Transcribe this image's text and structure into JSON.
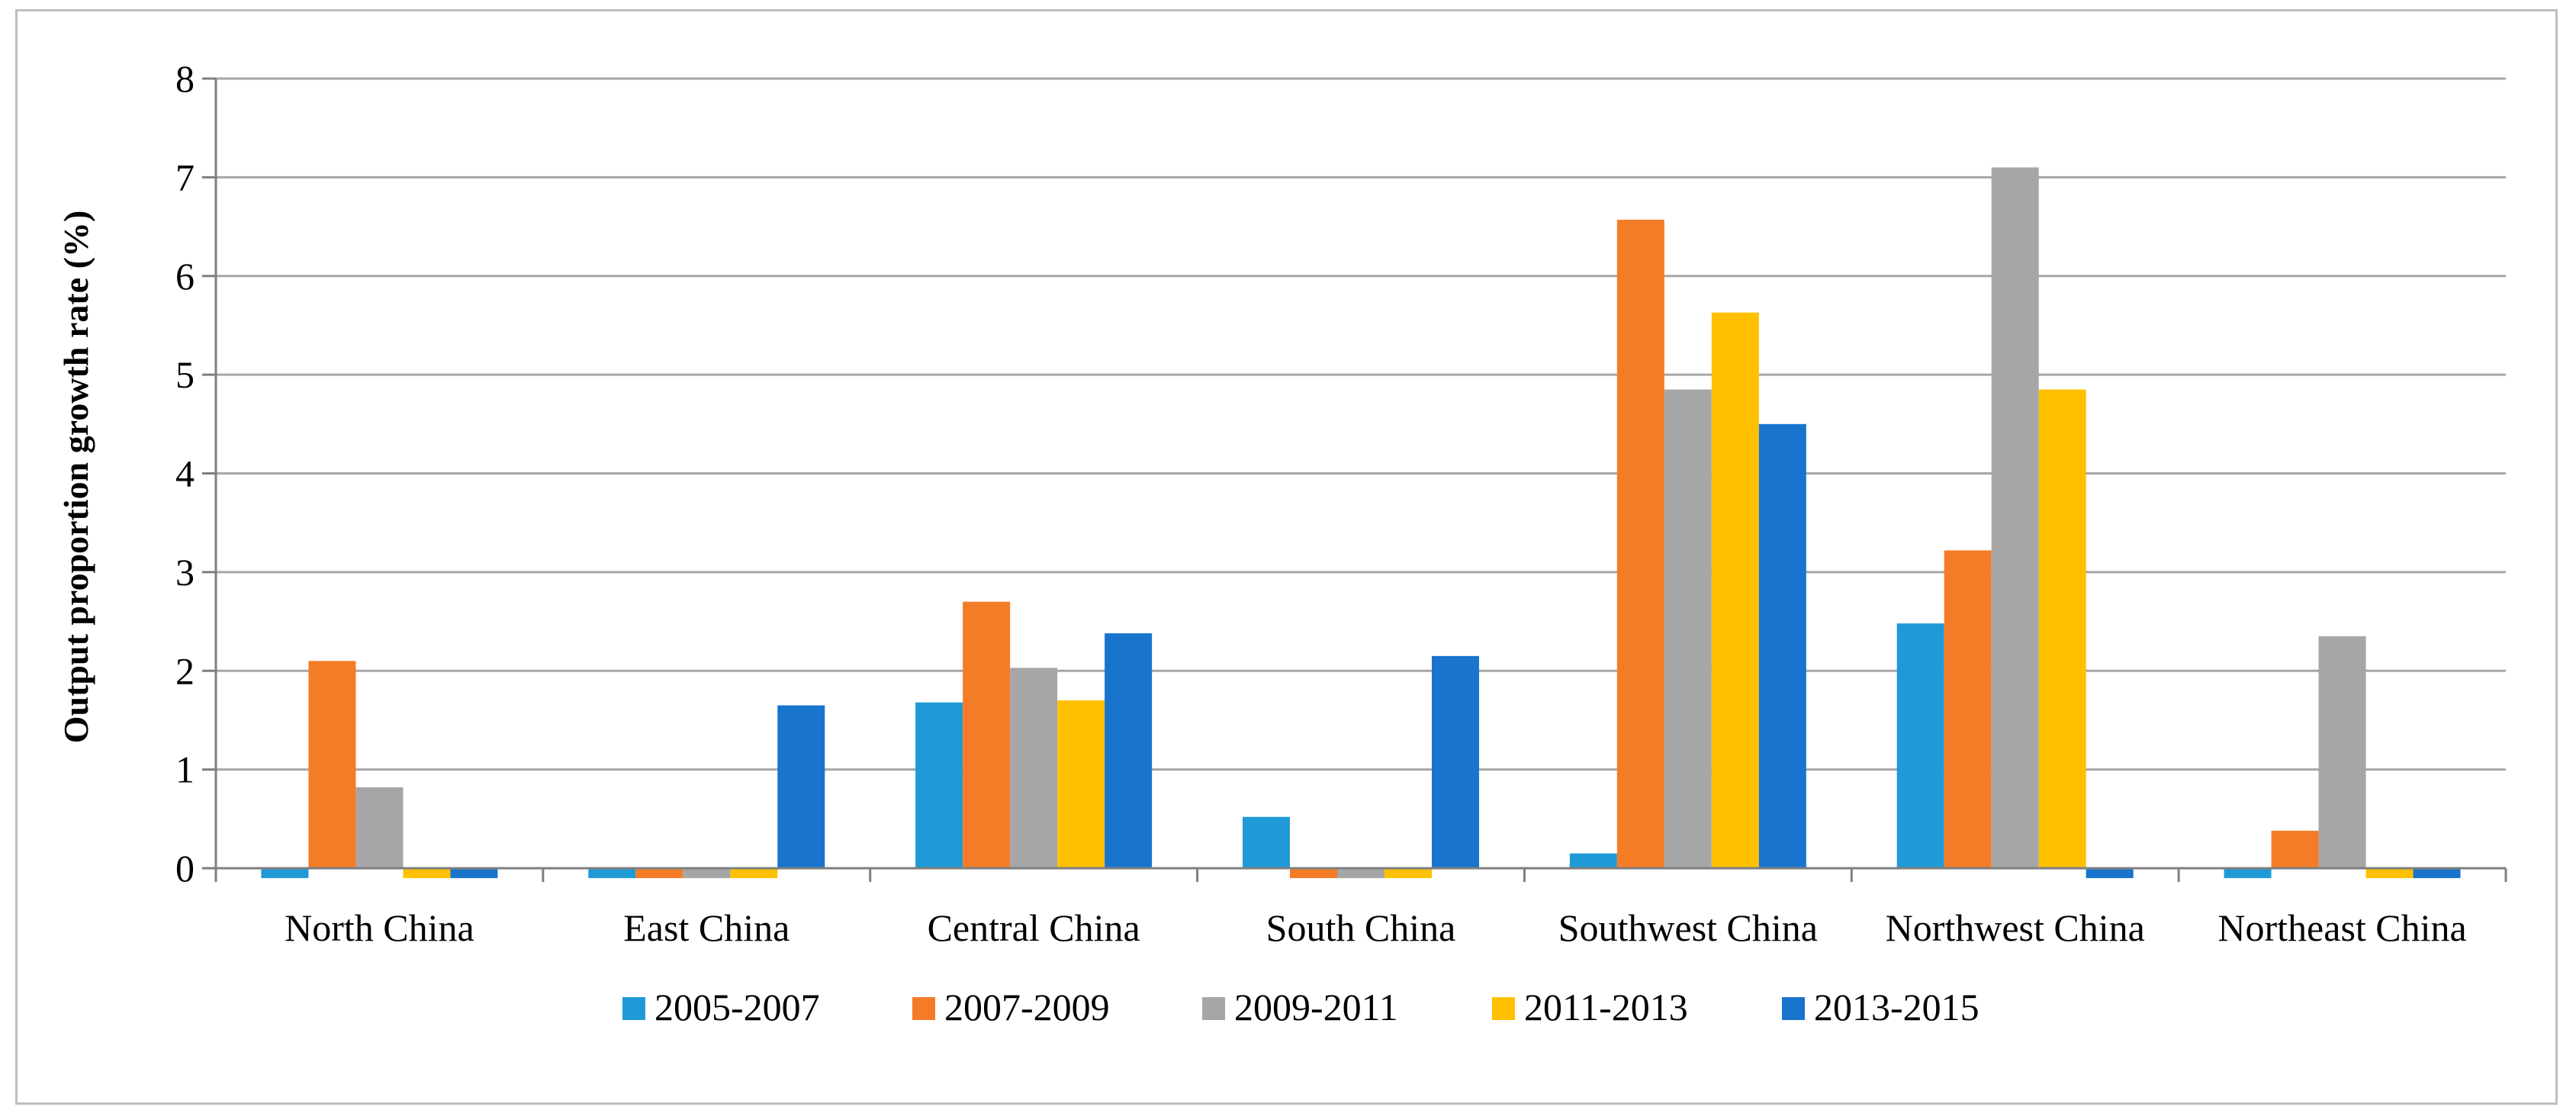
{
  "chart_data": {
    "type": "bar",
    "title": "",
    "xlabel": "",
    "ylabel": "Output proportion growth rate (%)",
    "ylim": [
      0,
      8
    ],
    "yticks": [
      0,
      1,
      2,
      3,
      4,
      5,
      6,
      7,
      8
    ],
    "grid": true,
    "legend_position": "bottom",
    "categories": [
      "North China",
      "East China",
      "Central China",
      "South China",
      "Southwest China",
      "Northwest China",
      "Northeast China"
    ],
    "series": [
      {
        "name": "2005-2007",
        "color": "#1f9ad6",
        "values": [
          -0.1,
          -0.1,
          1.68,
          0.52,
          0.15,
          2.48,
          -0.1
        ]
      },
      {
        "name": "2007-2009",
        "color": "#f57c26",
        "values": [
          2.1,
          -0.1,
          2.7,
          -0.1,
          6.57,
          3.22,
          0.38
        ]
      },
      {
        "name": "2009-2011",
        "color": "#a6a6a6",
        "values": [
          0.82,
          -0.1,
          2.03,
          -0.1,
          4.85,
          7.1,
          2.35
        ]
      },
      {
        "name": "2011-2013",
        "color": "#ffc000",
        "values": [
          -0.1,
          -0.1,
          1.7,
          -0.1,
          5.63,
          4.85,
          -0.1
        ]
      },
      {
        "name": "2013-2015",
        "color": "#1874cd",
        "values": [
          -0.1,
          1.65,
          2.38,
          2.15,
          4.5,
          -0.1,
          -0.1
        ]
      }
    ]
  }
}
